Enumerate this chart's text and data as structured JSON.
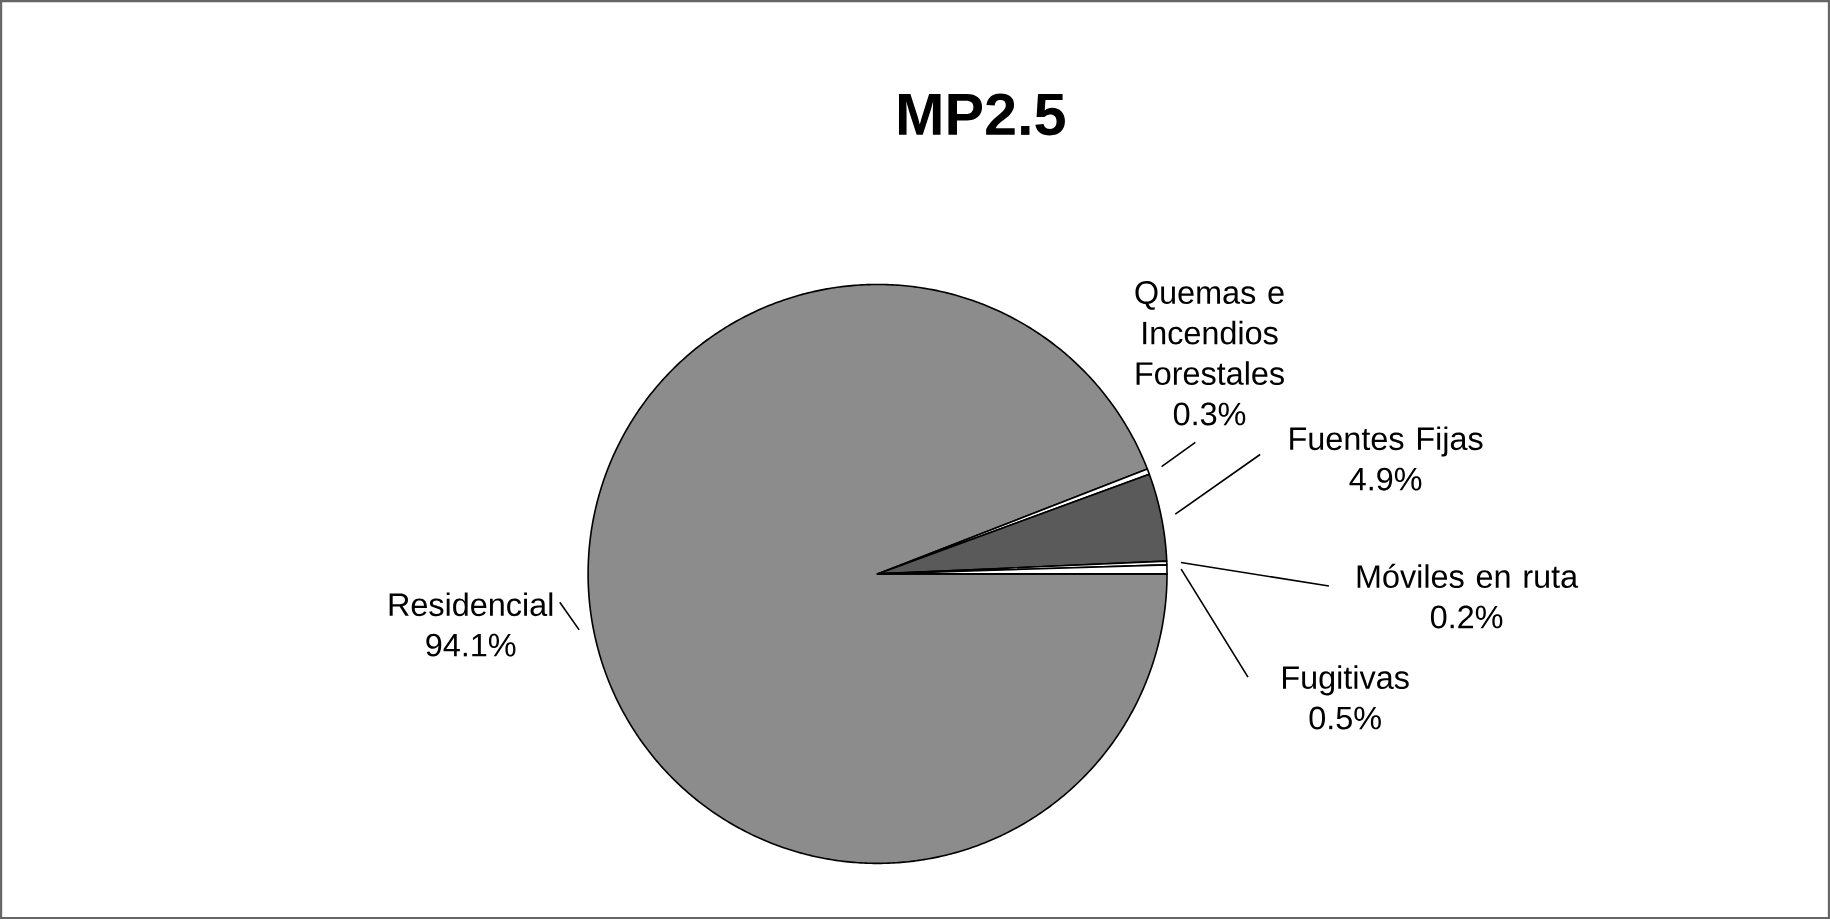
{
  "chart_data": {
    "type": "pie",
    "title": "MP2.5",
    "categories": [
      "Residencial",
      "Quemas e Incendios Forestales",
      "Fuentes Fijas",
      "Móviles en ruta",
      "Fugitivas"
    ],
    "values": [
      94.1,
      0.3,
      4.9,
      0.2,
      0.5
    ],
    "value_labels": [
      "94.1%",
      "0.3%",
      "4.9%",
      "0.2%",
      "0.5%"
    ],
    "colors": [
      "#8c8c8c",
      "#ffffff",
      "#5a5a5a",
      "#ffffff",
      "#ffffff"
    ]
  }
}
